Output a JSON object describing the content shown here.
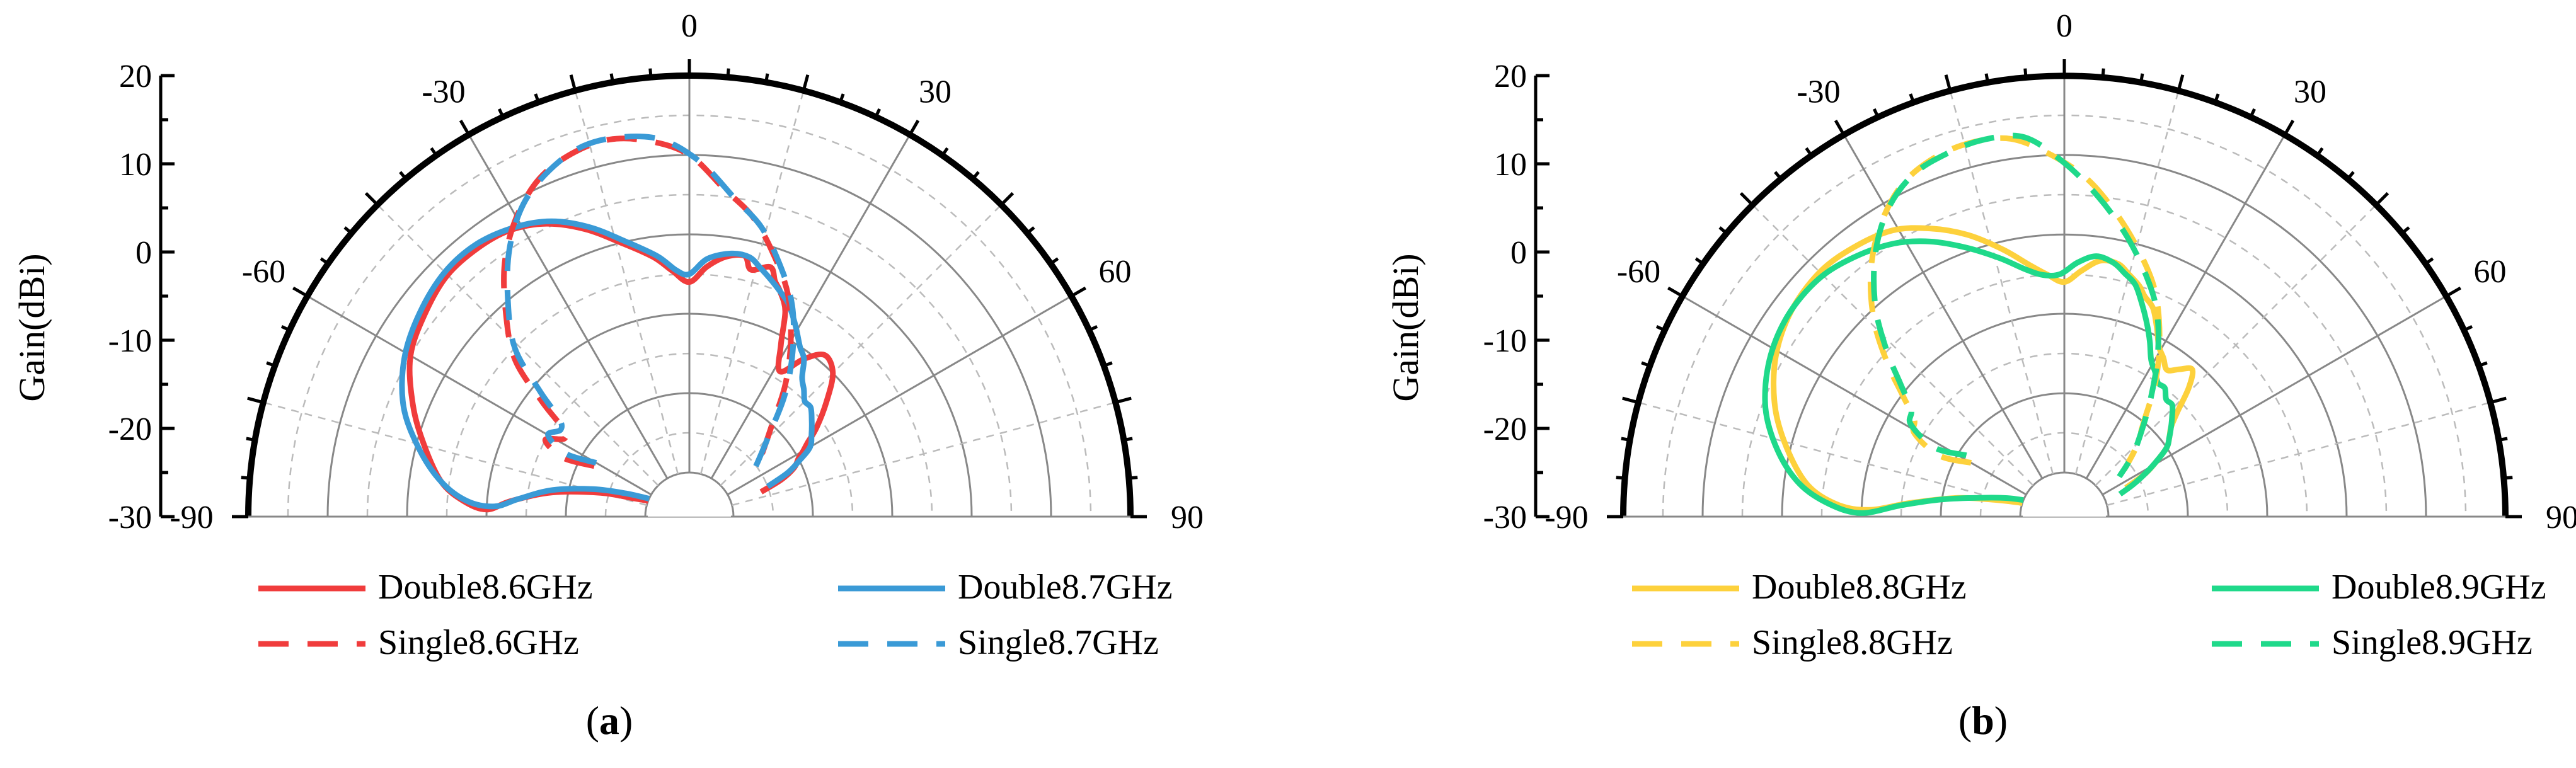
{
  "colors": {
    "red": "#f03c3c",
    "blue": "#3a9ad6",
    "yellow": "#fdd13c",
    "green": "#1fd98a",
    "outer_ring": "#000000",
    "major_grid": "#888888",
    "minor_grid": "#bbbbbb"
  },
  "chart_data": [
    {
      "type": "polar",
      "panel_label": "a",
      "ylabel": "Gain(dBi)",
      "r_ticks": [
        "20",
        "10",
        "0",
        "-10",
        "-20",
        "-30"
      ],
      "angle_ticks": [
        "-90",
        "-60",
        "-30",
        "0",
        "30",
        "60",
        "90"
      ],
      "rlim": [
        -30,
        20
      ],
      "angle_range": [
        -90,
        90
      ],
      "grid": true,
      "legend_position": "bottom",
      "series": [
        {
          "name": "Double8.6GHz",
          "color": "red",
          "style": "solid",
          "theta": [
            -69,
            -72,
            -75,
            -80,
            -85,
            -88,
            -86,
            -82,
            -75,
            -68,
            -60,
            -52,
            -45,
            -38,
            -32,
            -26,
            -20,
            -14,
            -8,
            -4,
            0,
            4,
            8,
            12,
            14,
            18,
            20,
            22,
            25,
            28,
            32,
            36,
            40,
            45,
            50,
            55,
            58,
            60,
            62,
            65,
            68,
            71
          ],
          "r": [
            -30,
            -28,
            -24,
            -18,
            -13,
            -10,
            -7,
            -4,
            -1,
            2,
            5,
            6.5,
            7.5,
            7.5,
            7,
            5.5,
            3,
            0,
            -2.5,
            -4.5,
            -6,
            -4,
            -2.5,
            -2,
            -3.5,
            -2.5,
            -4,
            -5,
            -7,
            -11,
            -14,
            -11,
            -9,
            -10,
            -13,
            -16,
            -18,
            -19,
            -20,
            -21,
            -23,
            -26
          ]
        },
        {
          "name": "Double8.7GHz",
          "color": "blue",
          "style": "solid",
          "theta": [
            -66,
            -70,
            -74,
            -79,
            -84,
            -87,
            -86,
            -82,
            -76,
            -69,
            -61,
            -53,
            -45,
            -38,
            -31,
            -25,
            -19,
            -13,
            -7,
            -3,
            0,
            4,
            9,
            13,
            16,
            19,
            22,
            25,
            29,
            33,
            36,
            39,
            42,
            45,
            48,
            52,
            56,
            60,
            63,
            66,
            69
          ],
          "r": [
            -30,
            -27,
            -23,
            -18,
            -14,
            -11,
            -7.5,
            -4,
            -0.5,
            3,
            5.5,
            7,
            8,
            8,
            7,
            5.5,
            3,
            0,
            -2.5,
            -4.5,
            -5,
            -3,
            -2,
            -2,
            -3,
            -4,
            -5,
            -6,
            -8,
            -10,
            -11,
            -13,
            -14,
            -15,
            -15,
            -16,
            -17,
            -18,
            -20,
            -22,
            -25
          ]
        },
        {
          "name": "Single8.6GHz",
          "color": "red",
          "style": "dashed",
          "theta": [
            -62,
            -65,
            -62,
            -58,
            -55,
            -52,
            -48,
            -42,
            -36,
            -30,
            -24,
            -18,
            -12,
            -6,
            0,
            6,
            12,
            18,
            24,
            30,
            36,
            42,
            48,
            54
          ],
          "r": [
            -22,
            -18,
            -15,
            -17,
            -16,
            -12,
            -6,
            -1,
            4,
            8,
            11,
            12.5,
            13,
            12,
            10,
            6,
            3,
            -1,
            -5,
            -10,
            -15,
            -20,
            -23,
            -25
          ]
        },
        {
          "name": "Single8.7GHz",
          "color": "blue",
          "style": "dashed",
          "theta": [
            -60,
            -63,
            -60,
            -56,
            -53,
            -50,
            -46,
            -40,
            -34,
            -28,
            -22,
            -16,
            -10,
            -4,
            2,
            8,
            14,
            20,
            26,
            32,
            38,
            44,
            50,
            56
          ],
          "r": [
            -22,
            -18,
            -15,
            -16,
            -15,
            -11,
            -5,
            0,
            5,
            9,
            11.5,
            13,
            13,
            12,
            9,
            5,
            2,
            -2,
            -6,
            -11,
            -16,
            -21,
            -24,
            -26
          ]
        }
      ]
    },
    {
      "type": "polar",
      "panel_label": "b",
      "ylabel": "Gain(dBi)",
      "r_ticks": [
        "20",
        "10",
        "0",
        "-10",
        "-20",
        "-30"
      ],
      "angle_ticks": [
        "-90",
        "-60",
        "-30",
        "0",
        "30",
        "60",
        "90"
      ],
      "rlim": [
        -30,
        20
      ],
      "angle_range": [
        -90,
        90
      ],
      "grid": true,
      "legend_position": "bottom",
      "series": [
        {
          "name": "Double8.8GHz",
          "color": "yellow",
          "style": "solid",
          "theta": [
            -72,
            -76,
            -80,
            -85,
            -88,
            -87,
            -83,
            -76,
            -69,
            -61,
            -53,
            -45,
            -38,
            -31,
            -25,
            -19,
            -13,
            -8,
            -4,
            0,
            4,
            8,
            12,
            15,
            18,
            20,
            23,
            26,
            29,
            32,
            35,
            38,
            41,
            44,
            47,
            50,
            53,
            56,
            59,
            62,
            65
          ],
          "r": [
            -30,
            -27,
            -22,
            -16,
            -11,
            -7,
            -3,
            0.5,
            3.5,
            6,
            7.5,
            8,
            7.5,
            6.5,
            4.5,
            2,
            -1,
            -3.5,
            -5,
            -6,
            -4.5,
            -3,
            -3,
            -4,
            -5,
            -6,
            -7,
            -9,
            -11,
            -12,
            -13,
            -12,
            -11,
            -13,
            -16,
            -18,
            -19,
            -20,
            -22,
            -24,
            -27
          ]
        },
        {
          "name": "Double8.9GHz",
          "color": "green",
          "style": "solid",
          "theta": [
            -68,
            -72,
            -77,
            -82,
            -86,
            -89,
            -87,
            -83,
            -77,
            -70,
            -62,
            -54,
            -46,
            -39,
            -32,
            -26,
            -20,
            -14,
            -9,
            -5,
            -1,
            3,
            7,
            11,
            14,
            17,
            20,
            23,
            26,
            29,
            32,
            35,
            38,
            41,
            44,
            47,
            50,
            53,
            56,
            59,
            62,
            65,
            68
          ],
          "r": [
            -30,
            -28,
            -25,
            -20,
            -15,
            -10,
            -6,
            -2,
            1.5,
            4.5,
            6.5,
            7.5,
            7.5,
            6.5,
            5,
            3,
            0.5,
            -2,
            -4,
            -5,
            -5,
            -3.5,
            -2.5,
            -3,
            -4,
            -5,
            -7,
            -9,
            -11,
            -13,
            -14,
            -15,
            -15,
            -16,
            -16,
            -17,
            -18,
            -19,
            -20,
            -22,
            -24,
            -26,
            -28
          ]
        },
        {
          "name": "Single8.8GHz",
          "color": "yellow",
          "style": "dashed",
          "theta": [
            -60,
            -64,
            -61,
            -57,
            -53,
            -49,
            -44,
            -38,
            -32,
            -26,
            -20,
            -14,
            -8,
            -2,
            4,
            10,
            16,
            22,
            28,
            34,
            40,
            46,
            52
          ],
          "r": [
            -22,
            -18,
            -14,
            -13,
            -10,
            -6,
            -1,
            4,
            8,
            11,
            12.5,
            13,
            12.5,
            10,
            7,
            3,
            -1,
            -5,
            -10,
            -15,
            -20,
            -23,
            -26
          ]
        },
        {
          "name": "Single8.9GHz",
          "color": "green",
          "style": "dashed",
          "theta": [
            -58,
            -62,
            -59,
            -55,
            -51,
            -47,
            -42,
            -36,
            -30,
            -24,
            -18,
            -12,
            -6,
            0,
            6,
            12,
            18,
            24,
            30,
            36,
            42,
            48,
            54
          ],
          "r": [
            -21,
            -17,
            -13,
            -12,
            -9,
            -5,
            0,
            5,
            9,
            11.5,
            12.5,
            13,
            12.5,
            9,
            5,
            1,
            -3,
            -7,
            -12,
            -17,
            -21,
            -24,
            -27
          ]
        }
      ]
    }
  ]
}
